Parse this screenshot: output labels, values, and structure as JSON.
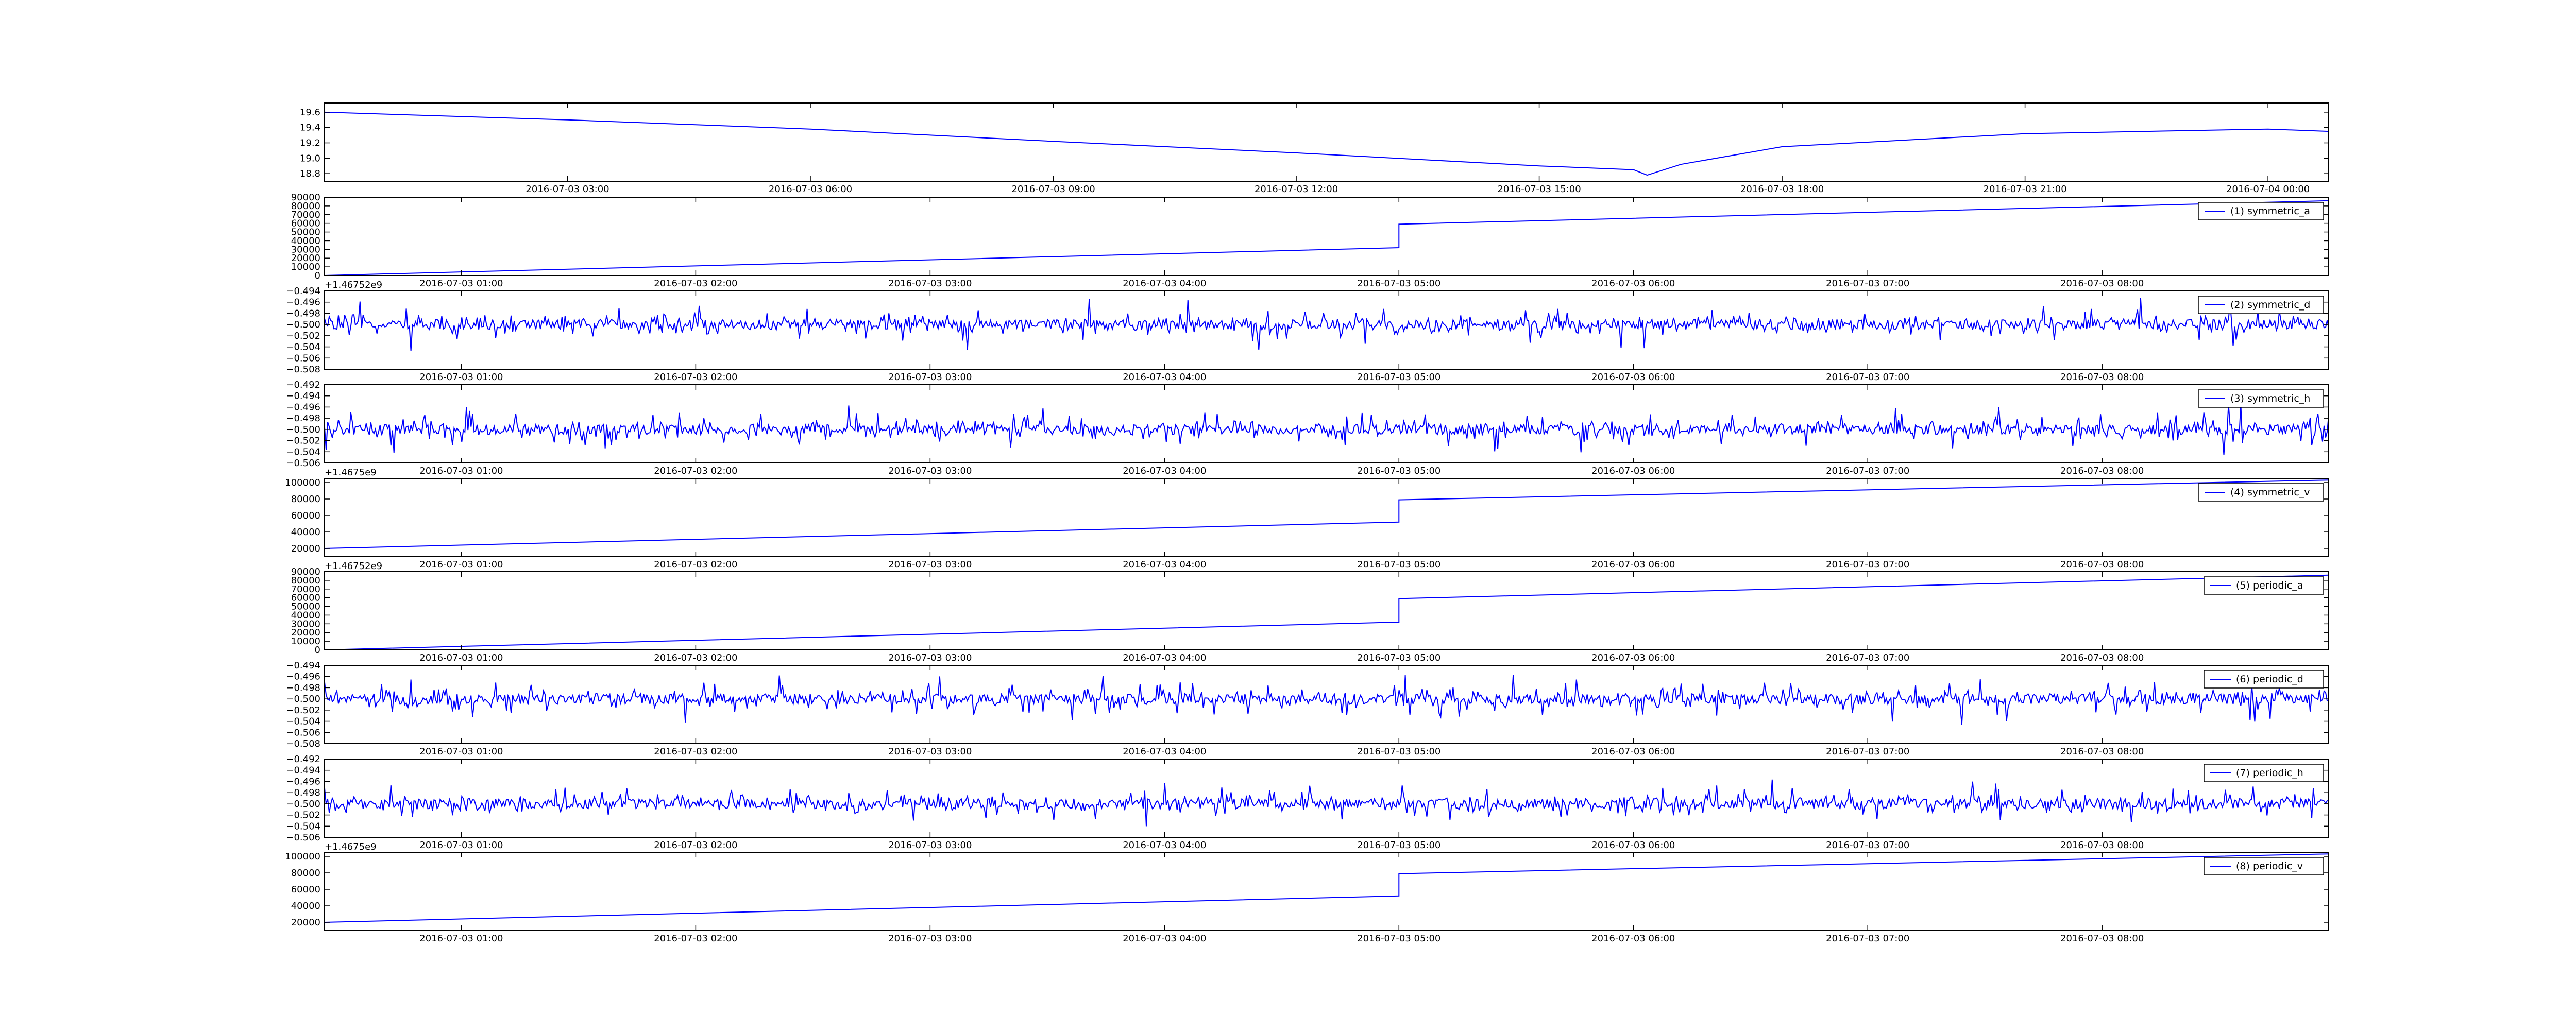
{
  "colors": {
    "line": "#0000ff",
    "axes": "#000000",
    "background": "#ffffff"
  },
  "chart_data": [
    {
      "type": "line",
      "title": "",
      "legend": "",
      "legend_placement": "none",
      "xlabel": "",
      "ylabel": "",
      "x_range": [
        "2016-07-03 00:00",
        "2016-07-04 00:45"
      ],
      "ylim": [
        18.7,
        19.72
      ],
      "yticks": [
        "18.8",
        "19.0",
        "19.2",
        "19.4",
        "19.6"
      ],
      "xticks": [
        "2016-07-03 03:00",
        "2016-07-03 06:00",
        "2016-07-03 09:00",
        "2016-07-03 12:00",
        "2016-07-03 15:00",
        "2016-07-03 18:00",
        "2016-07-03 21:00",
        "2016-07-04 00:00"
      ],
      "offset_label": "",
      "series": [
        {
          "name": "",
          "x": [
            "2016-07-03 00:00",
            "2016-07-03 03:00",
            "2016-07-03 06:00",
            "2016-07-03 09:00",
            "2016-07-03 12:00",
            "2016-07-03 15:00",
            "2016-07-03 16:10",
            "2016-07-03 16:20",
            "2016-07-03 16:45",
            "2016-07-03 18:00",
            "2016-07-03 21:00",
            "2016-07-04 00:00",
            "2016-07-04 00:45"
          ],
          "values": [
            19.6,
            19.5,
            19.38,
            19.22,
            19.07,
            18.9,
            18.85,
            18.78,
            18.92,
            19.15,
            19.32,
            19.38,
            19.35
          ]
        }
      ]
    },
    {
      "type": "line",
      "title": "",
      "legend": "(1) symmetric_a",
      "legend_placement": "upper right",
      "xlabel": "",
      "ylabel": "",
      "x_range": [
        "2016-07-03 00:25",
        "2016-07-03 08:58"
      ],
      "ylim": [
        0,
        90000
      ],
      "yticks": [
        "0",
        "10000",
        "20000",
        "30000",
        "40000",
        "50000",
        "60000",
        "70000",
        "80000",
        "90000"
      ],
      "xticks": [
        "2016-07-03 01:00",
        "2016-07-03 02:00",
        "2016-07-03 03:00",
        "2016-07-03 04:00",
        "2016-07-03 05:00",
        "2016-07-03 06:00",
        "2016-07-03 07:00",
        "2016-07-03 08:00"
      ],
      "offset_label": "+1.46752e9",
      "series": [
        {
          "name": "(1) symmetric_a",
          "x": [
            "2016-07-03 00:25",
            "2016-07-03 05:00",
            "2016-07-03 05:00",
            "2016-07-03 08:58"
          ],
          "values": [
            0,
            32000,
            59000,
            86000
          ]
        }
      ]
    },
    {
      "type": "line",
      "title": "",
      "legend": "(2) symmetric_d",
      "legend_placement": "upper right",
      "xlabel": "",
      "ylabel": "",
      "x_range": [
        "2016-07-03 00:25",
        "2016-07-03 08:58"
      ],
      "ylim": [
        -0.508,
        -0.494
      ],
      "yticks": [
        "−0.494",
        "−0.496",
        "−0.498",
        "−0.500",
        "−0.502",
        "−0.504",
        "−0.506",
        "−0.508"
      ],
      "xticks": [
        "2016-07-03 01:00",
        "2016-07-03 02:00",
        "2016-07-03 03:00",
        "2016-07-03 04:00",
        "2016-07-03 05:00",
        "2016-07-03 06:00",
        "2016-07-03 07:00",
        "2016-07-03 08:00"
      ],
      "offset_label": "",
      "series": [
        {
          "name": "(2) symmetric_d",
          "center": -0.5,
          "range": [
            -0.506,
            -0.495
          ]
        }
      ]
    },
    {
      "type": "line",
      "title": "",
      "legend": "(3) symmetric_h",
      "legend_placement": "upper right",
      "xlabel": "",
      "ylabel": "",
      "x_range": [
        "2016-07-03 00:25",
        "2016-07-03 08:58"
      ],
      "ylim": [
        -0.506,
        -0.492
      ],
      "yticks": [
        "−0.492",
        "−0.494",
        "−0.496",
        "−0.498",
        "−0.500",
        "−0.502",
        "−0.504",
        "−0.506"
      ],
      "xticks": [
        "2016-07-03 01:00",
        "2016-07-03 02:00",
        "2016-07-03 03:00",
        "2016-07-03 04:00",
        "2016-07-03 05:00",
        "2016-07-03 06:00",
        "2016-07-03 07:00",
        "2016-07-03 08:00"
      ],
      "offset_label": "+1.4675e9",
      "series": [
        {
          "name": "(3) symmetric_h",
          "center": -0.5,
          "range": [
            -0.505,
            -0.494
          ]
        }
      ]
    },
    {
      "type": "line",
      "title": "",
      "legend": "(4) symmetric_v",
      "legend_placement": "upper right",
      "xlabel": "",
      "ylabel": "",
      "x_range": [
        "2016-07-03 00:25",
        "2016-07-03 08:58"
      ],
      "ylim": [
        10000,
        105000
      ],
      "yticks": [
        "20000",
        "40000",
        "60000",
        "80000",
        "100000"
      ],
      "xticks": [
        "2016-07-03 01:00",
        "2016-07-03 02:00",
        "2016-07-03 03:00",
        "2016-07-03 04:00",
        "2016-07-03 05:00",
        "2016-07-03 06:00",
        "2016-07-03 07:00",
        "2016-07-03 08:00"
      ],
      "offset_label": "+1.46752e9",
      "series": [
        {
          "name": "(4) symmetric_v",
          "x": [
            "2016-07-03 00:25",
            "2016-07-03 05:00",
            "2016-07-03 05:00",
            "2016-07-03 08:58"
          ],
          "values": [
            20000,
            52000,
            79000,
            103000
          ]
        }
      ]
    },
    {
      "type": "line",
      "title": "",
      "legend": "(5) periodic_a",
      "legend_placement": "upper right",
      "xlabel": "",
      "ylabel": "",
      "x_range": [
        "2016-07-03 00:25",
        "2016-07-03 08:58"
      ],
      "ylim": [
        0,
        90000
      ],
      "yticks": [
        "0",
        "10000",
        "20000",
        "30000",
        "40000",
        "50000",
        "60000",
        "70000",
        "80000",
        "90000"
      ],
      "xticks": [
        "2016-07-03 01:00",
        "2016-07-03 02:00",
        "2016-07-03 03:00",
        "2016-07-03 04:00",
        "2016-07-03 05:00",
        "2016-07-03 06:00",
        "2016-07-03 07:00",
        "2016-07-03 08:00"
      ],
      "offset_label": "",
      "series": [
        {
          "name": "(5) periodic_a",
          "x": [
            "2016-07-03 00:25",
            "2016-07-03 05:00",
            "2016-07-03 05:00",
            "2016-07-03 08:58"
          ],
          "values": [
            0,
            32000,
            59000,
            86000
          ]
        }
      ]
    },
    {
      "type": "line",
      "title": "",
      "legend": "(6) periodic_d",
      "legend_placement": "upper right",
      "xlabel": "",
      "ylabel": "",
      "x_range": [
        "2016-07-03 00:25",
        "2016-07-03 08:58"
      ],
      "ylim": [
        -0.508,
        -0.494
      ],
      "yticks": [
        "−0.494",
        "−0.496",
        "−0.498",
        "−0.500",
        "−0.502",
        "−0.504",
        "−0.506",
        "−0.508"
      ],
      "xticks": [
        "2016-07-03 01:00",
        "2016-07-03 02:00",
        "2016-07-03 03:00",
        "2016-07-03 04:00",
        "2016-07-03 05:00",
        "2016-07-03 06:00",
        "2016-07-03 07:00",
        "2016-07-03 08:00"
      ],
      "offset_label": "",
      "series": [
        {
          "name": "(6) periodic_d",
          "center": -0.5,
          "range": [
            -0.506,
            -0.495
          ]
        }
      ]
    },
    {
      "type": "line",
      "title": "",
      "legend": "(7) periodic_h",
      "legend_placement": "upper right",
      "xlabel": "",
      "ylabel": "",
      "x_range": [
        "2016-07-03 00:25",
        "2016-07-03 08:58"
      ],
      "ylim": [
        -0.506,
        -0.492
      ],
      "yticks": [
        "−0.492",
        "−0.494",
        "−0.496",
        "−0.498",
        "−0.500",
        "−0.502",
        "−0.504",
        "−0.506"
      ],
      "xticks": [
        "2016-07-03 01:00",
        "2016-07-03 02:00",
        "2016-07-03 03:00",
        "2016-07-03 04:00",
        "2016-07-03 05:00",
        "2016-07-03 06:00",
        "2016-07-03 07:00",
        "2016-07-03 08:00"
      ],
      "offset_label": "+1.4675e9",
      "series": [
        {
          "name": "(7) periodic_h",
          "center": -0.5,
          "range": [
            -0.505,
            -0.494
          ]
        }
      ]
    },
    {
      "type": "line",
      "title": "",
      "legend": "(8) periodic_v",
      "legend_placement": "upper right",
      "xlabel": "",
      "ylabel": "",
      "x_range": [
        "2016-07-03 00:25",
        "2016-07-03 08:58"
      ],
      "ylim": [
        10000,
        105000
      ],
      "yticks": [
        "20000",
        "40000",
        "60000",
        "80000",
        "100000"
      ],
      "xticks": [
        "2016-07-03 01:00",
        "2016-07-03 02:00",
        "2016-07-03 03:00",
        "2016-07-03 04:00",
        "2016-07-03 05:00",
        "2016-07-03 06:00",
        "2016-07-03 07:00",
        "2016-07-03 08:00"
      ],
      "offset_label": "",
      "series": [
        {
          "name": "(8) periodic_v",
          "x": [
            "2016-07-03 00:25",
            "2016-07-03 05:00",
            "2016-07-03 05:00",
            "2016-07-03 08:58"
          ],
          "values": [
            20000,
            52000,
            79000,
            103000
          ]
        }
      ]
    }
  ]
}
